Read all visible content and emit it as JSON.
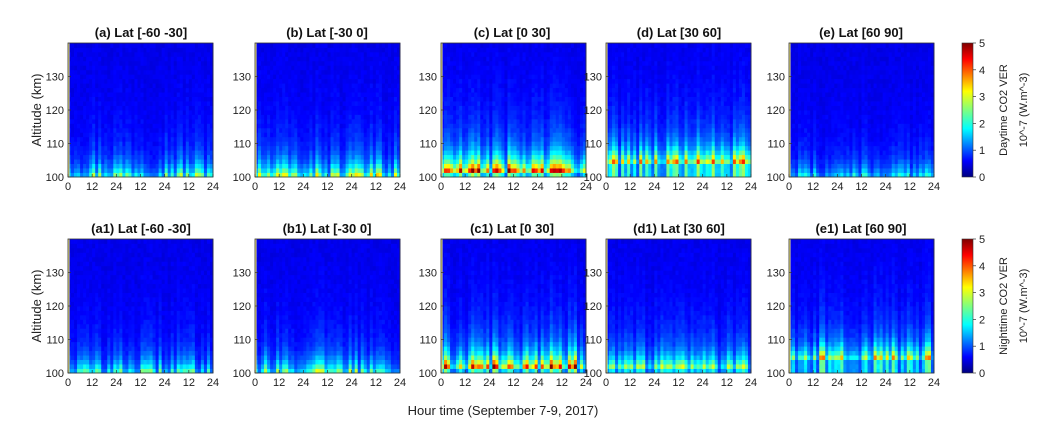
{
  "chart_data": {
    "type": "heatmap",
    "x_label": "Hour time (September 7-9, 2017)",
    "y_label": "Altitude (km)",
    "x_ticks": [
      "0",
      "12",
      "24",
      "12",
      "24",
      "12",
      "24"
    ],
    "x_tick_values": [
      0,
      12,
      24,
      36,
      48,
      60,
      72
    ],
    "x_range": [
      0,
      72
    ],
    "y_ticks": [
      "100",
      "110",
      "120",
      "130"
    ],
    "y_tick_values": [
      100,
      110,
      120,
      130
    ],
    "y_range": [
      100,
      140
    ],
    "colormap": "jet",
    "colorbar_range": [
      0,
      5
    ],
    "colorbar_ticks": [
      "0",
      "1",
      "2",
      "3",
      "4",
      "5"
    ],
    "rows": [
      {
        "colorbar_label": "Daytime CO2 VER",
        "colorbar_unit": "10^-7 (W.m^-3)",
        "panels": [
          {
            "title": "(a) Lat [-60 -30]",
            "peak_altitude_km": 100,
            "intensity": 0.55
          },
          {
            "title": "(b) Lat [-30 0]",
            "peak_altitude_km": 100,
            "intensity": 0.6
          },
          {
            "title": "(c) Lat [0 30]",
            "peak_altitude_km": 102,
            "intensity": 0.85
          },
          {
            "title": "(d) Lat [30 60]",
            "peak_altitude_km": 104,
            "intensity": 0.8
          },
          {
            "title": "(e) Lat [60 90]",
            "peak_altitude_km": 100,
            "intensity": 0.35
          }
        ]
      },
      {
        "colorbar_label": "Nighttime CO2 VER",
        "colorbar_unit": "10^-7 (W.m^-3)",
        "panels": [
          {
            "title": "(a1) Lat [-60 -30]",
            "peak_altitude_km": 100,
            "intensity": 0.45
          },
          {
            "title": "(b1) Lat [-30 0]",
            "peak_altitude_km": 100,
            "intensity": 0.55
          },
          {
            "title": "(c1) Lat [0 30]",
            "peak_altitude_km": 102,
            "intensity": 0.85
          },
          {
            "title": "(d1) Lat [30 60]",
            "peak_altitude_km": 101,
            "intensity": 0.6
          },
          {
            "title": "(e1) Lat [60 90]",
            "peak_altitude_km": 104,
            "intensity": 0.7
          }
        ]
      }
    ]
  }
}
